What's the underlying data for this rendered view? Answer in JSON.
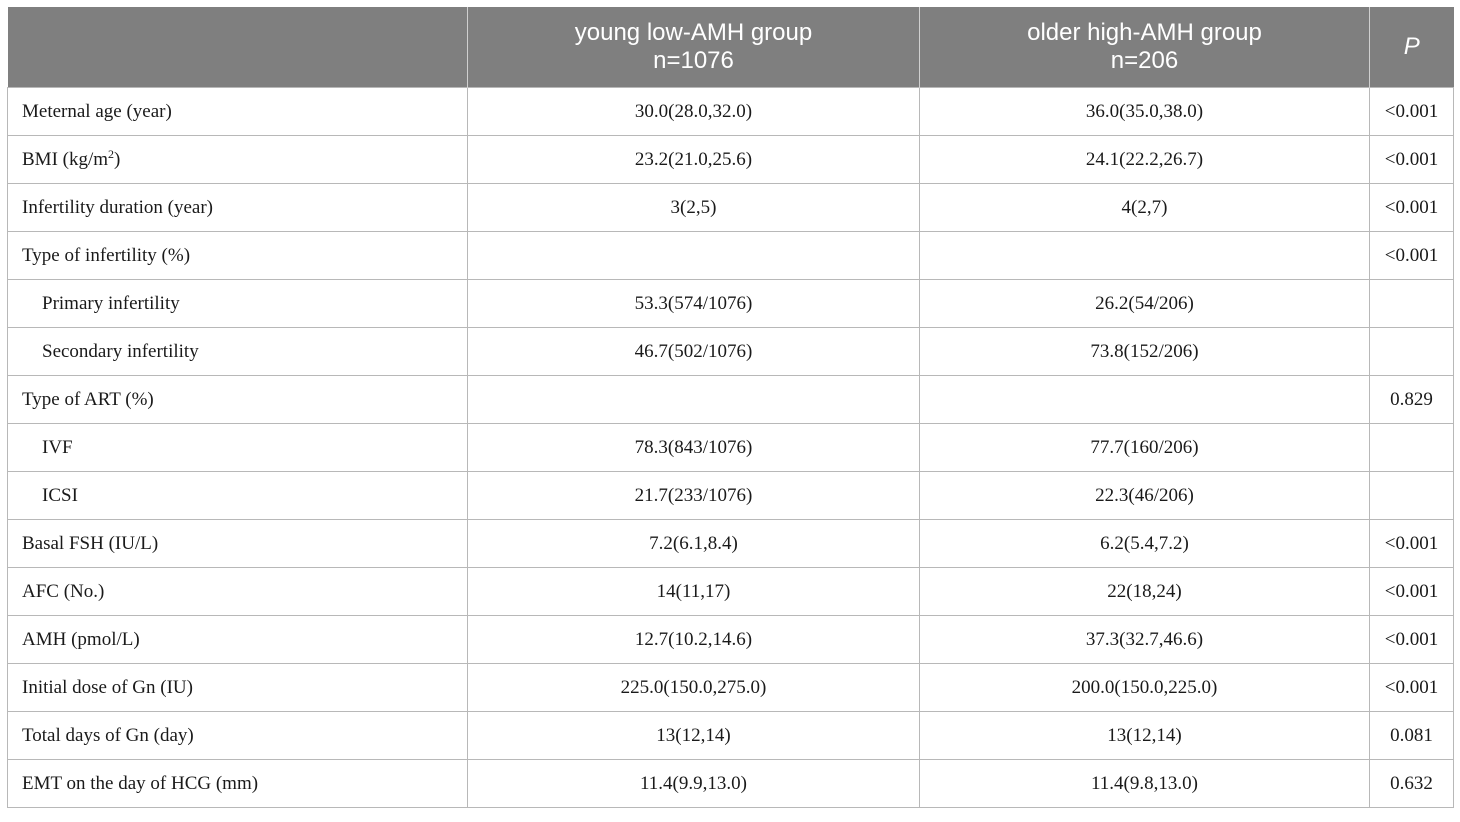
{
  "header": {
    "col1": "",
    "col2_line1": "young low-AMH group",
    "col2_line2": "n=1076",
    "col3_line1": "older high-AMH group",
    "col3_line2": "n=206",
    "col4": "P"
  },
  "rows": [
    {
      "label": "Meternal age (year)",
      "young": "30.0(28.0,32.0)",
      "older": "36.0(35.0,38.0)",
      "p": "<0.001"
    },
    {
      "label_prefix": "BMI (kg/m",
      "label_sup": "2",
      "label_suffix": ")",
      "young": "23.2(21.0,25.6)",
      "older": "24.1(22.2,26.7)",
      "p": "<0.001"
    },
    {
      "label": "Infertility duration (year)",
      "young": "3(2,5)",
      "older": "4(2,7)",
      "p": "<0.001"
    },
    {
      "label": "Type of infertility (%)",
      "young": "",
      "older": "",
      "p": "<0.001"
    },
    {
      "label": "Primary infertility",
      "young": "53.3(574/1076)",
      "older": "26.2(54/206)",
      "p": ""
    },
    {
      "label": "Secondary infertility",
      "young": "46.7(502/1076)",
      "older": "73.8(152/206)",
      "p": ""
    },
    {
      "label": "Type of ART (%)",
      "young": "",
      "older": "",
      "p": "0.829"
    },
    {
      "label": "IVF",
      "young": "78.3(843/1076)",
      "older": "77.7(160/206)",
      "p": ""
    },
    {
      "label": "ICSI",
      "young": "21.7(233/1076)",
      "older": "22.3(46/206)",
      "p": ""
    },
    {
      "label": "Basal FSH (IU/L)",
      "young": "7.2(6.1,8.4)",
      "older": "6.2(5.4,7.2)",
      "p": "<0.001"
    },
    {
      "label": "AFC (No.)",
      "young": "14(11,17)",
      "older": "22(18,24)",
      "p": "<0.001"
    },
    {
      "label": "AMH (pmol/L)",
      "young": "12.7(10.2,14.6)",
      "older": "37.3(32.7,46.6)",
      "p": "<0.001"
    },
    {
      "label": "Initial dose of Gn (IU)",
      "young": "225.0(150.0,275.0)",
      "older": "200.0(150.0,225.0)",
      "p": "<0.001"
    },
    {
      "label": "Total days of Gn (day)",
      "young": "13(12,14)",
      "older": "13(12,14)",
      "p": "0.081"
    },
    {
      "label": "EMT on the day of HCG (mm)",
      "young": "11.4(9.9,13.0)",
      "older": "11.4(9.8,13.0)",
      "p": "0.632"
    }
  ]
}
